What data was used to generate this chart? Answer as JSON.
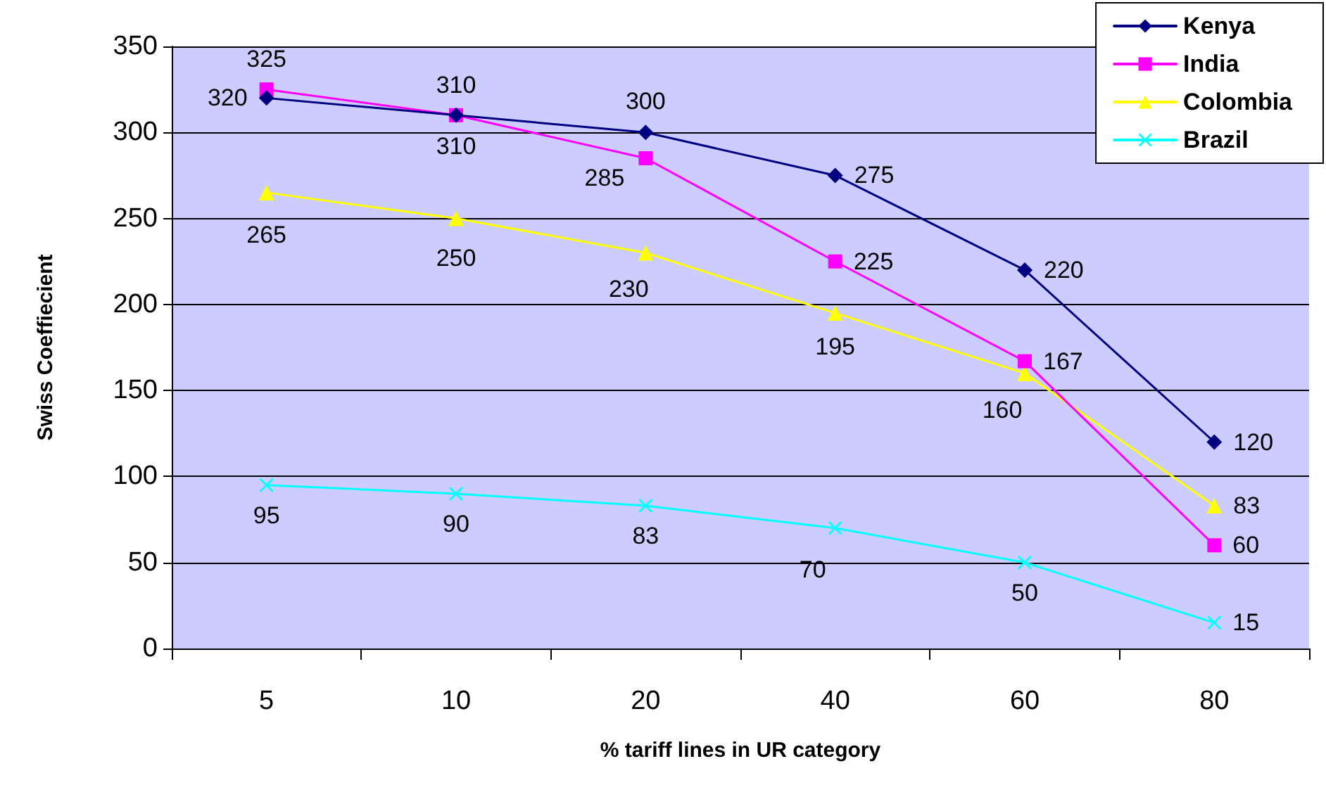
{
  "chart_data": {
    "type": "line",
    "xlabel": "% tariff lines in UR category",
    "ylabel": "Swiss Coeffiecient",
    "categories": [
      "5",
      "10",
      "20",
      "40",
      "60",
      "80"
    ],
    "series": [
      {
        "name": "Kenya",
        "color": "#000080",
        "marker": "diamond",
        "values": [
          320,
          310,
          300,
          275,
          220,
          120
        ]
      },
      {
        "name": "India",
        "color": "#ff00ff",
        "marker": "square",
        "values": [
          325,
          310,
          285,
          225,
          167,
          60
        ]
      },
      {
        "name": "Colombia",
        "color": "#ffff00",
        "marker": "triangle",
        "values": [
          265,
          250,
          230,
          195,
          160,
          83
        ]
      },
      {
        "name": "Brazil",
        "color": "#00ffff",
        "marker": "cross",
        "values": [
          95,
          90,
          83,
          70,
          50,
          15
        ]
      }
    ],
    "ylim": [
      0,
      350
    ],
    "yticks": [
      0,
      50,
      100,
      150,
      200,
      250,
      300,
      350
    ],
    "grid": "y",
    "legend": "top right",
    "data_labels": true
  }
}
